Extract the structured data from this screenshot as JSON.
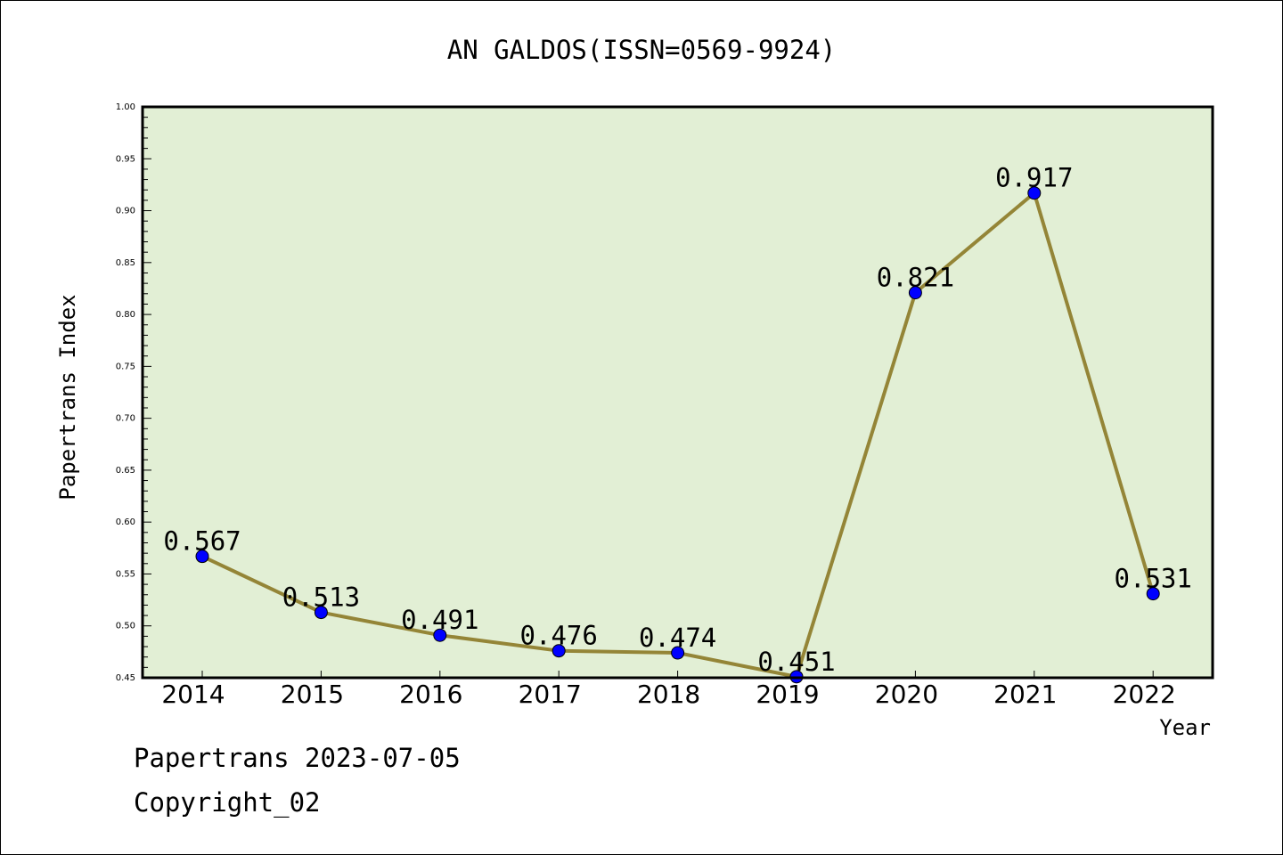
{
  "chart_data": {
    "type": "line",
    "title": "AN GALDOS(ISSN=0569-9924)",
    "xlabel": "Year",
    "ylabel": "Papertrans Index",
    "ylim": [
      0.45,
      1.0
    ],
    "y_ticks": [
      "0.45",
      "0.50",
      "0.55",
      "0.60",
      "0.65",
      "0.70",
      "0.75",
      "0.80",
      "0.85",
      "0.90",
      "0.95",
      "1.00"
    ],
    "categories": [
      "2014",
      "2015",
      "2016",
      "2017",
      "2018",
      "2019",
      "2020",
      "2021",
      "2022"
    ],
    "series": [
      {
        "values": [
          0.567,
          0.513,
          0.491,
          0.476,
          0.474,
          0.451,
          0.821,
          0.917,
          0.531
        ],
        "labels": [
          "0.567",
          "0.513",
          "0.491",
          "0.476",
          "0.474",
          "0.451",
          "0.821",
          "0.917",
          "0.531"
        ]
      }
    ],
    "grid": false,
    "colors": {
      "plot_background": "#e2efd5",
      "line": "#948537",
      "marker": "#0000ff"
    }
  },
  "footer": {
    "line1": "Papertrans 2023-07-05",
    "line2": "Copyright_02"
  }
}
